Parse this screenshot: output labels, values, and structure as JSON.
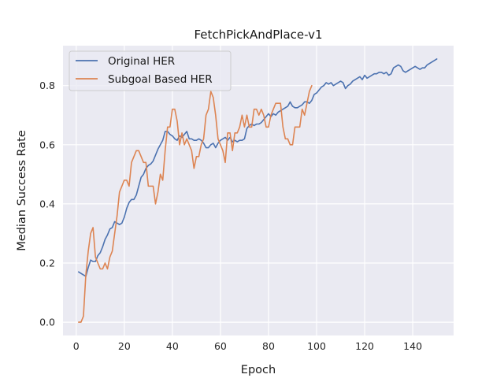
{
  "chart_data": {
    "type": "line",
    "title": "FetchPickAndPlace-v1",
    "xlabel": "Epoch",
    "ylabel": "Median Success Rate",
    "xlim": [
      -5.5,
      157
    ],
    "ylim": [
      -0.045,
      0.935
    ],
    "xticks": [
      "0",
      "20",
      "40",
      "60",
      "80",
      "100",
      "120",
      "140"
    ],
    "yticks": [
      "0.0",
      "0.2",
      "0.4",
      "0.6",
      "0.8"
    ],
    "grid": true,
    "legend_position": "upper-left",
    "series": [
      {
        "name": "Original HER",
        "color": "#4c72b0",
        "points": [
          [
            1,
            0.17
          ],
          [
            2,
            0.165
          ],
          [
            3,
            0.16
          ],
          [
            4,
            0.155
          ],
          [
            5,
            0.185
          ],
          [
            6,
            0.21
          ],
          [
            7,
            0.205
          ],
          [
            8,
            0.205
          ],
          [
            9,
            0.225
          ],
          [
            10,
            0.235
          ],
          [
            11,
            0.255
          ],
          [
            12,
            0.28
          ],
          [
            13,
            0.295
          ],
          [
            14,
            0.315
          ],
          [
            15,
            0.32
          ],
          [
            16,
            0.34
          ],
          [
            17,
            0.335
          ],
          [
            18,
            0.33
          ],
          [
            19,
            0.335
          ],
          [
            20,
            0.355
          ],
          [
            21,
            0.385
          ],
          [
            22,
            0.405
          ],
          [
            23,
            0.415
          ],
          [
            24,
            0.415
          ],
          [
            25,
            0.43
          ],
          [
            26,
            0.46
          ],
          [
            27,
            0.49
          ],
          [
            28,
            0.5
          ],
          [
            29,
            0.52
          ],
          [
            30,
            0.53
          ],
          [
            31,
            0.535
          ],
          [
            32,
            0.545
          ],
          [
            33,
            0.565
          ],
          [
            34,
            0.585
          ],
          [
            35,
            0.6
          ],
          [
            36,
            0.615
          ],
          [
            37,
            0.645
          ],
          [
            38,
            0.645
          ],
          [
            39,
            0.635
          ],
          [
            40,
            0.63
          ],
          [
            41,
            0.62
          ],
          [
            42,
            0.615
          ],
          [
            43,
            0.63
          ],
          [
            44,
            0.625
          ],
          [
            45,
            0.635
          ],
          [
            46,
            0.645
          ],
          [
            47,
            0.62
          ],
          [
            48,
            0.62
          ],
          [
            49,
            0.615
          ],
          [
            50,
            0.615
          ],
          [
            51,
            0.62
          ],
          [
            52,
            0.615
          ],
          [
            53,
            0.605
          ],
          [
            54,
            0.59
          ],
          [
            55,
            0.59
          ],
          [
            56,
            0.6
          ],
          [
            57,
            0.605
          ],
          [
            58,
            0.59
          ],
          [
            59,
            0.605
          ],
          [
            60,
            0.615
          ],
          [
            61,
            0.62
          ],
          [
            62,
            0.625
          ],
          [
            63,
            0.615
          ],
          [
            64,
            0.625
          ],
          [
            65,
            0.61
          ],
          [
            66,
            0.615
          ],
          [
            67,
            0.61
          ],
          [
            68,
            0.615
          ],
          [
            69,
            0.615
          ],
          [
            70,
            0.62
          ],
          [
            71,
            0.655
          ],
          [
            72,
            0.665
          ],
          [
            73,
            0.67
          ],
          [
            74,
            0.665
          ],
          [
            75,
            0.67
          ],
          [
            76,
            0.67
          ],
          [
            77,
            0.675
          ],
          [
            78,
            0.685
          ],
          [
            79,
            0.695
          ],
          [
            80,
            0.705
          ],
          [
            81,
            0.695
          ],
          [
            82,
            0.705
          ],
          [
            83,
            0.7
          ],
          [
            84,
            0.71
          ],
          [
            85,
            0.715
          ],
          [
            86,
            0.72
          ],
          [
            87,
            0.725
          ],
          [
            88,
            0.73
          ],
          [
            89,
            0.745
          ],
          [
            90,
            0.73
          ],
          [
            91,
            0.725
          ],
          [
            92,
            0.725
          ],
          [
            93,
            0.73
          ],
          [
            94,
            0.735
          ],
          [
            95,
            0.745
          ],
          [
            96,
            0.745
          ],
          [
            97,
            0.74
          ],
          [
            98,
            0.75
          ],
          [
            99,
            0.77
          ],
          [
            100,
            0.775
          ],
          [
            101,
            0.785
          ],
          [
            102,
            0.795
          ],
          [
            103,
            0.8
          ],
          [
            104,
            0.81
          ],
          [
            105,
            0.805
          ],
          [
            106,
            0.81
          ],
          [
            107,
            0.8
          ],
          [
            108,
            0.805
          ],
          [
            109,
            0.81
          ],
          [
            110,
            0.815
          ],
          [
            111,
            0.81
          ],
          [
            112,
            0.79
          ],
          [
            113,
            0.8
          ],
          [
            114,
            0.805
          ],
          [
            115,
            0.815
          ],
          [
            116,
            0.82
          ],
          [
            117,
            0.825
          ],
          [
            118,
            0.83
          ],
          [
            119,
            0.82
          ],
          [
            120,
            0.835
          ],
          [
            121,
            0.825
          ],
          [
            122,
            0.83
          ],
          [
            123,
            0.835
          ],
          [
            124,
            0.84
          ],
          [
            125,
            0.84
          ],
          [
            126,
            0.845
          ],
          [
            127,
            0.845
          ],
          [
            128,
            0.84
          ],
          [
            129,
            0.845
          ],
          [
            130,
            0.835
          ],
          [
            131,
            0.84
          ],
          [
            132,
            0.86
          ],
          [
            133,
            0.865
          ],
          [
            134,
            0.87
          ],
          [
            135,
            0.865
          ],
          [
            136,
            0.85
          ],
          [
            137,
            0.845
          ],
          [
            138,
            0.85
          ],
          [
            139,
            0.855
          ],
          [
            140,
            0.86
          ],
          [
            141,
            0.865
          ],
          [
            142,
            0.86
          ],
          [
            143,
            0.855
          ],
          [
            144,
            0.86
          ],
          [
            145,
            0.86
          ],
          [
            146,
            0.87
          ],
          [
            147,
            0.875
          ],
          [
            148,
            0.88
          ],
          [
            149,
            0.885
          ],
          [
            150,
            0.89
          ]
        ]
      },
      {
        "name": "Subgoal Based HER",
        "color": "#dd8452",
        "points": [
          [
            1,
            0.0
          ],
          [
            2,
            0.0
          ],
          [
            3,
            0.02
          ],
          [
            4,
            0.16
          ],
          [
            5,
            0.24
          ],
          [
            6,
            0.3
          ],
          [
            7,
            0.32
          ],
          [
            8,
            0.22
          ],
          [
            9,
            0.2
          ],
          [
            10,
            0.18
          ],
          [
            11,
            0.18
          ],
          [
            12,
            0.2
          ],
          [
            13,
            0.18
          ],
          [
            14,
            0.22
          ],
          [
            15,
            0.24
          ],
          [
            16,
            0.3
          ],
          [
            17,
            0.36
          ],
          [
            18,
            0.44
          ],
          [
            19,
            0.46
          ],
          [
            20,
            0.48
          ],
          [
            21,
            0.48
          ],
          [
            22,
            0.46
          ],
          [
            23,
            0.54
          ],
          [
            24,
            0.56
          ],
          [
            25,
            0.58
          ],
          [
            26,
            0.58
          ],
          [
            27,
            0.56
          ],
          [
            28,
            0.54
          ],
          [
            29,
            0.54
          ],
          [
            30,
            0.46
          ],
          [
            31,
            0.46
          ],
          [
            32,
            0.46
          ],
          [
            33,
            0.4
          ],
          [
            34,
            0.44
          ],
          [
            35,
            0.5
          ],
          [
            36,
            0.48
          ],
          [
            37,
            0.58
          ],
          [
            38,
            0.66
          ],
          [
            39,
            0.66
          ],
          [
            40,
            0.72
          ],
          [
            41,
            0.72
          ],
          [
            42,
            0.68
          ],
          [
            43,
            0.6
          ],
          [
            44,
            0.64
          ],
          [
            45,
            0.6
          ],
          [
            46,
            0.62
          ],
          [
            47,
            0.6
          ],
          [
            48,
            0.58
          ],
          [
            49,
            0.52
          ],
          [
            50,
            0.56
          ],
          [
            51,
            0.56
          ],
          [
            52,
            0.6
          ],
          [
            53,
            0.62
          ],
          [
            54,
            0.7
          ],
          [
            55,
            0.72
          ],
          [
            56,
            0.78
          ],
          [
            57,
            0.76
          ],
          [
            58,
            0.7
          ],
          [
            59,
            0.62
          ],
          [
            60,
            0.6
          ],
          [
            61,
            0.58
          ],
          [
            62,
            0.54
          ],
          [
            63,
            0.64
          ],
          [
            64,
            0.64
          ],
          [
            65,
            0.58
          ],
          [
            66,
            0.64
          ],
          [
            67,
            0.64
          ],
          [
            68,
            0.66
          ],
          [
            69,
            0.7
          ],
          [
            70,
            0.66
          ],
          [
            71,
            0.7
          ],
          [
            72,
            0.66
          ],
          [
            73,
            0.66
          ],
          [
            74,
            0.72
          ],
          [
            75,
            0.72
          ],
          [
            76,
            0.7
          ],
          [
            77,
            0.72
          ],
          [
            78,
            0.7
          ],
          [
            79,
            0.66
          ],
          [
            80,
            0.66
          ],
          [
            81,
            0.7
          ],
          [
            82,
            0.72
          ],
          [
            83,
            0.74
          ],
          [
            84,
            0.74
          ],
          [
            85,
            0.74
          ],
          [
            86,
            0.66
          ],
          [
            87,
            0.62
          ],
          [
            88,
            0.62
          ],
          [
            89,
            0.6
          ],
          [
            90,
            0.6
          ],
          [
            91,
            0.66
          ],
          [
            92,
            0.66
          ],
          [
            93,
            0.66
          ],
          [
            94,
            0.72
          ],
          [
            95,
            0.7
          ],
          [
            96,
            0.74
          ],
          [
            97,
            0.78
          ],
          [
            98,
            0.8
          ]
        ]
      }
    ]
  }
}
